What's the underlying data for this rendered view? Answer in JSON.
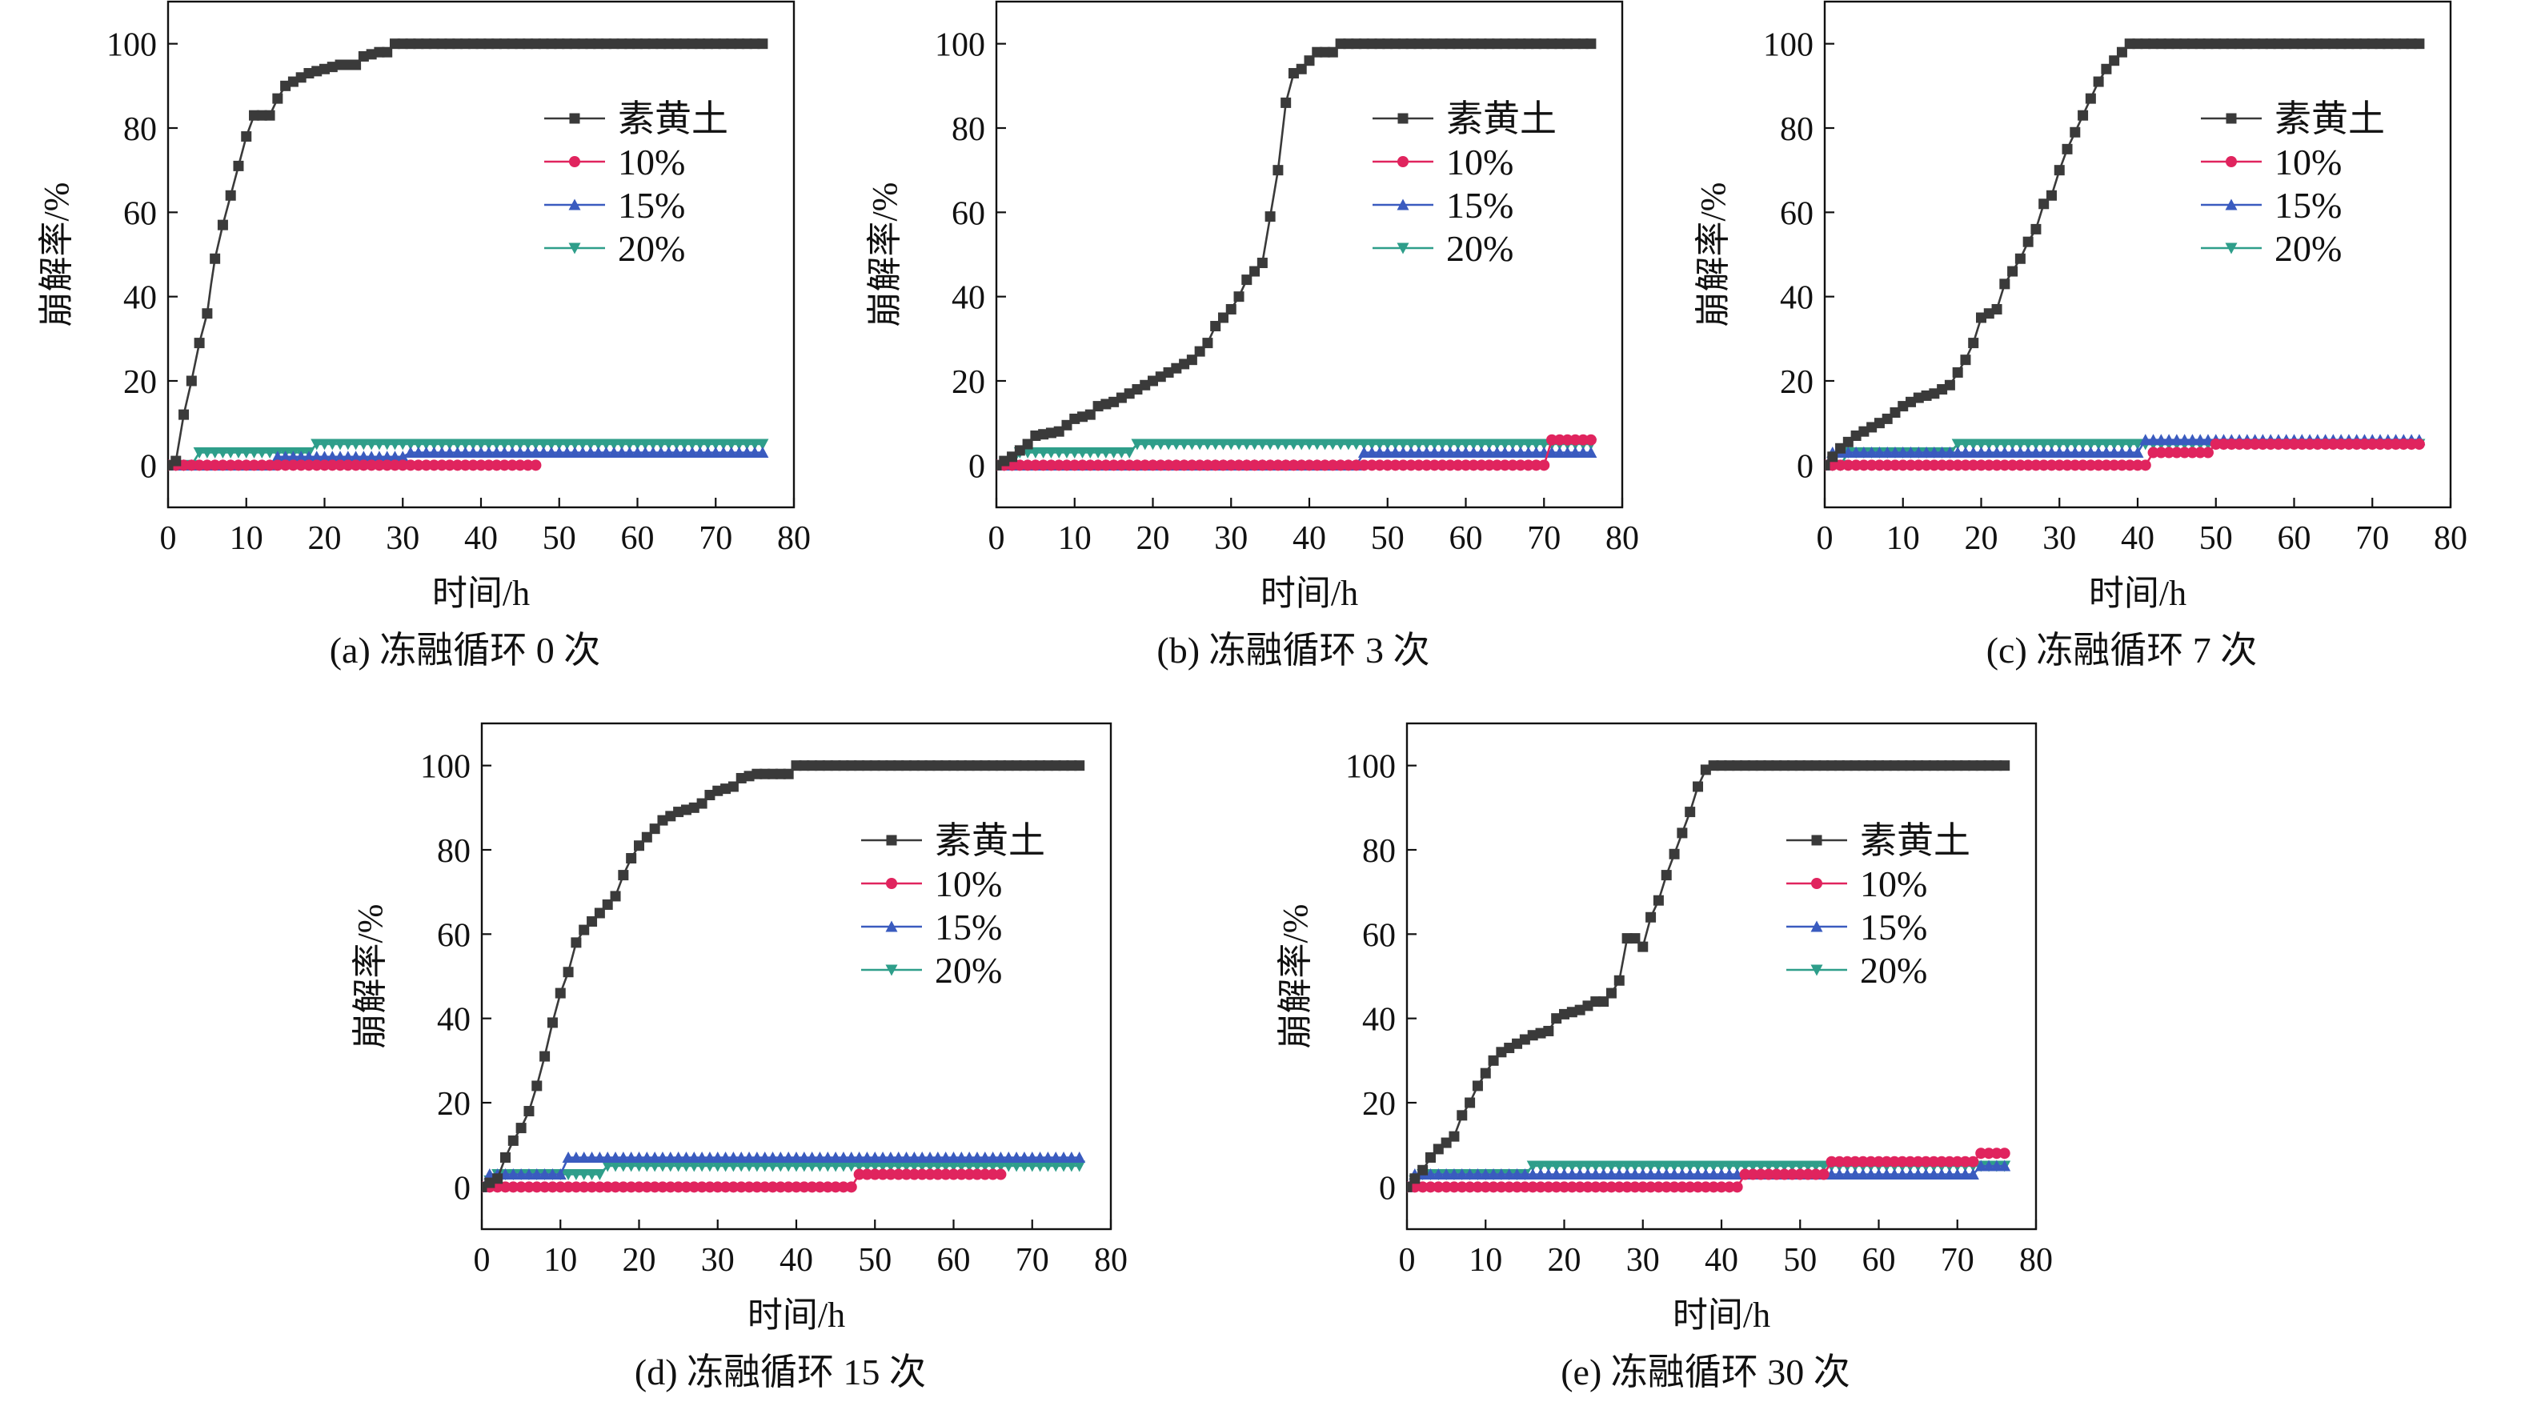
{
  "figure": {
    "legend_entries": [
      "素黄土",
      "10%",
      "15%",
      "20%"
    ],
    "series_colors": {
      "素黄土": "#3a3a3a",
      "10%": "#e0245e",
      "15%": "#3a5bbf",
      "20%": "#2e9e8a"
    },
    "series_markers": {
      "素黄土": "square",
      "10%": "circle",
      "15%": "triangle-up",
      "20%": "triangle-down"
    }
  },
  "chart_data": [
    {
      "type": "line",
      "caption": "(a) 冻融循环 0 次",
      "xlabel": "时间/h",
      "ylabel": "崩解率/%",
      "xlim": [
        0,
        80
      ],
      "ylim": [
        -10,
        110
      ],
      "xticks": [
        0,
        10,
        20,
        30,
        40,
        50,
        60,
        70,
        80
      ],
      "yticks": [
        0,
        20,
        40,
        60,
        80,
        100
      ],
      "legend_position": "top-right",
      "grid": false,
      "series": [
        {
          "name": "素黄土",
          "points": [
            [
              0,
              0
            ],
            [
              1,
              1
            ],
            [
              2,
              12
            ],
            [
              3,
              20
            ],
            [
              4,
              29
            ],
            [
              5,
              36
            ],
            [
              5.5,
              43
            ],
            [
              6,
              49
            ],
            [
              7,
              57
            ],
            [
              8,
              64
            ],
            [
              9,
              71
            ],
            [
              10,
              78
            ],
            [
              11,
              83
            ],
            [
              13,
              83
            ],
            [
              14,
              87
            ],
            [
              15,
              90
            ],
            [
              16,
              91
            ],
            [
              17,
              92
            ],
            [
              18,
              93
            ],
            [
              20,
              94
            ],
            [
              22,
              95
            ],
            [
              24,
              95
            ],
            [
              25,
              97
            ],
            [
              27,
              98
            ],
            [
              28,
              98
            ],
            [
              29,
              100
            ],
            [
              76,
              100
            ]
          ]
        },
        {
          "name": "10%",
          "points": [
            [
              0,
              0
            ],
            [
              47,
              0
            ]
          ]
        },
        {
          "name": "15%",
          "points": [
            [
              0,
              0
            ],
            [
              13,
              0
            ],
            [
              14,
              2
            ],
            [
              30,
              2
            ],
            [
              31,
              3
            ],
            [
              76,
              3
            ]
          ]
        },
        {
          "name": "20%",
          "points": [
            [
              0,
              0
            ],
            [
              3,
              0
            ],
            [
              4,
              3
            ],
            [
              18,
              3
            ],
            [
              19,
              5
            ],
            [
              76,
              5
            ]
          ]
        }
      ]
    },
    {
      "type": "line",
      "caption": "(b) 冻融循环 3 次",
      "xlabel": "时间/h",
      "ylabel": "崩解率/%",
      "xlim": [
        0,
        80
      ],
      "ylim": [
        -10,
        110
      ],
      "xticks": [
        0,
        10,
        20,
        30,
        40,
        50,
        60,
        70,
        80
      ],
      "yticks": [
        0,
        20,
        40,
        60,
        80,
        100
      ],
      "legend_position": "top-right",
      "grid": false,
      "series": [
        {
          "name": "素黄土",
          "points": [
            [
              0,
              0
            ],
            [
              2,
              2
            ],
            [
              4,
              5
            ],
            [
              5,
              7
            ],
            [
              8,
              8
            ],
            [
              10,
              11
            ],
            [
              12,
              12
            ],
            [
              13,
              14
            ],
            [
              15,
              15
            ],
            [
              17,
              17
            ],
            [
              19,
              19
            ],
            [
              21,
              21
            ],
            [
              23,
              23
            ],
            [
              25,
              25
            ],
            [
              27,
              29
            ],
            [
              28,
              33
            ],
            [
              30,
              37
            ],
            [
              31,
              40
            ],
            [
              32,
              44
            ],
            [
              34,
              48
            ],
            [
              35,
              59
            ],
            [
              36,
              70
            ],
            [
              37,
              86
            ],
            [
              38,
              93
            ],
            [
              39,
              94
            ],
            [
              40,
              96
            ],
            [
              41,
              98
            ],
            [
              43,
              98
            ],
            [
              44,
              100
            ],
            [
              76,
              100
            ]
          ]
        },
        {
          "name": "10%",
          "points": [
            [
              0,
              0
            ],
            [
              70,
              0
            ],
            [
              71,
              6
            ],
            [
              76,
              6
            ]
          ]
        },
        {
          "name": "15%",
          "points": [
            [
              0,
              0
            ],
            [
              46,
              0
            ],
            [
              47,
              3
            ],
            [
              76,
              3
            ]
          ]
        },
        {
          "name": "20%",
          "points": [
            [
              0,
              0
            ],
            [
              2,
              0
            ],
            [
              3,
              3
            ],
            [
              17,
              3
            ],
            [
              18,
              5
            ],
            [
              76,
              5
            ]
          ]
        }
      ]
    },
    {
      "type": "line",
      "caption": "(c) 冻融循环 7 次",
      "xlabel": "时间/h",
      "ylabel": "崩解率/%",
      "xlim": [
        0,
        80
      ],
      "ylim": [
        -10,
        110
      ],
      "xticks": [
        0,
        10,
        20,
        30,
        40,
        50,
        60,
        70,
        80
      ],
      "yticks": [
        0,
        20,
        40,
        60,
        80,
        100
      ],
      "legend_position": "top-right",
      "grid": false,
      "series": [
        {
          "name": "素黄土",
          "points": [
            [
              0,
              0
            ],
            [
              2,
              4
            ],
            [
              4,
              7
            ],
            [
              6,
              9
            ],
            [
              8,
              11
            ],
            [
              10,
              14
            ],
            [
              12,
              16
            ],
            [
              14,
              17
            ],
            [
              16,
              19
            ],
            [
              17,
              22
            ],
            [
              18,
              25
            ],
            [
              19,
              29
            ],
            [
              20,
              35
            ],
            [
              22,
              37
            ],
            [
              23,
              43
            ],
            [
              24,
              46
            ],
            [
              25,
              49
            ],
            [
              26,
              53
            ],
            [
              27,
              56
            ],
            [
              28,
              62
            ],
            [
              29,
              64
            ],
            [
              30,
              70
            ],
            [
              31,
              75
            ],
            [
              32,
              79
            ],
            [
              33,
              83
            ],
            [
              34,
              87
            ],
            [
              35,
              91
            ],
            [
              36,
              94
            ],
            [
              37,
              96
            ],
            [
              38,
              98
            ],
            [
              39,
              100
            ],
            [
              76,
              100
            ]
          ]
        },
        {
          "name": "10%",
          "points": [
            [
              0,
              0
            ],
            [
              41,
              0
            ],
            [
              42,
              3
            ],
            [
              49,
              3
            ],
            [
              50,
              5
            ],
            [
              76,
              5
            ]
          ]
        },
        {
          "name": "15%",
          "points": [
            [
              0,
              0
            ],
            [
              1,
              3
            ],
            [
              40,
              3
            ],
            [
              41,
              6
            ],
            [
              76,
              6
            ]
          ]
        },
        {
          "name": "20%",
          "points": [
            [
              0,
              0
            ],
            [
              2,
              0
            ],
            [
              3,
              3
            ],
            [
              16,
              3
            ],
            [
              17,
              5
            ],
            [
              76,
              5
            ]
          ]
        }
      ]
    },
    {
      "type": "line",
      "caption": "(d) 冻融循环 15 次",
      "xlabel": "时间/h",
      "ylabel": "崩解率/%",
      "xlim": [
        0,
        80
      ],
      "ylim": [
        -10,
        110
      ],
      "xticks": [
        0,
        10,
        20,
        30,
        40,
        50,
        60,
        70,
        80
      ],
      "yticks": [
        0,
        20,
        40,
        60,
        80,
        100
      ],
      "legend_position": "top-right",
      "grid": false,
      "series": [
        {
          "name": "素黄土",
          "points": [
            [
              0,
              0
            ],
            [
              2,
              2
            ],
            [
              3,
              7
            ],
            [
              4,
              11
            ],
            [
              5,
              14
            ],
            [
              6,
              18
            ],
            [
              7,
              24
            ],
            [
              8,
              31
            ],
            [
              9,
              39
            ],
            [
              10,
              46
            ],
            [
              11,
              51
            ],
            [
              12,
              58
            ],
            [
              13,
              61
            ],
            [
              14,
              63
            ],
            [
              15,
              65
            ],
            [
              16,
              67
            ],
            [
              17,
              69
            ],
            [
              18,
              74
            ],
            [
              19,
              78
            ],
            [
              20,
              81
            ],
            [
              21,
              83
            ],
            [
              22,
              85
            ],
            [
              23,
              87
            ],
            [
              24,
              88
            ],
            [
              25,
              89
            ],
            [
              27,
              90
            ],
            [
              28,
              91
            ],
            [
              29,
              93
            ],
            [
              30,
              94
            ],
            [
              32,
              95
            ],
            [
              33,
              97
            ],
            [
              35,
              98
            ],
            [
              39,
              98
            ],
            [
              40,
              100
            ],
            [
              76,
              100
            ]
          ]
        },
        {
          "name": "10%",
          "points": [
            [
              0,
              0
            ],
            [
              47,
              0
            ],
            [
              48,
              3
            ],
            [
              66,
              3
            ]
          ]
        },
        {
          "name": "15%",
          "points": [
            [
              0,
              0
            ],
            [
              1,
              3
            ],
            [
              10,
              3
            ],
            [
              11,
              7
            ],
            [
              76,
              7
            ]
          ]
        },
        {
          "name": "20%",
          "points": [
            [
              0,
              0
            ],
            [
              2,
              3
            ],
            [
              15,
              3
            ],
            [
              16,
              5
            ],
            [
              76,
              5
            ]
          ]
        }
      ]
    },
    {
      "type": "line",
      "caption": "(e) 冻融循环 30 次",
      "xlabel": "时间/h",
      "ylabel": "崩解率/%",
      "xlim": [
        0,
        80
      ],
      "ylim": [
        -10,
        110
      ],
      "xticks": [
        0,
        10,
        20,
        30,
        40,
        50,
        60,
        70,
        80
      ],
      "yticks": [
        0,
        20,
        40,
        60,
        80,
        100
      ],
      "legend_position": "top-right",
      "grid": false,
      "series": [
        {
          "name": "素黄土",
          "points": [
            [
              0,
              0
            ],
            [
              2,
              4
            ],
            [
              3,
              7
            ],
            [
              4,
              9
            ],
            [
              6,
              12
            ],
            [
              7,
              17
            ],
            [
              8,
              20
            ],
            [
              9,
              24
            ],
            [
              10,
              27
            ],
            [
              11,
              30
            ],
            [
              12,
              32
            ],
            [
              13,
              33
            ],
            [
              14,
              34
            ],
            [
              15,
              35
            ],
            [
              16,
              36
            ],
            [
              18,
              37
            ],
            [
              19,
              40
            ],
            [
              20,
              41
            ],
            [
              22,
              42
            ],
            [
              24,
              44
            ],
            [
              25,
              44
            ],
            [
              26,
              46
            ],
            [
              27,
              49
            ],
            [
              28,
              59
            ],
            [
              29,
              59
            ],
            [
              30,
              57
            ],
            [
              31,
              64
            ],
            [
              32,
              68
            ],
            [
              33,
              74
            ],
            [
              34,
              79
            ],
            [
              35,
              84
            ],
            [
              36,
              89
            ],
            [
              37,
              95
            ],
            [
              38,
              99
            ],
            [
              39,
              100
            ],
            [
              76,
              100
            ]
          ]
        },
        {
          "name": "10%",
          "points": [
            [
              0,
              0
            ],
            [
              42,
              0
            ],
            [
              43,
              3
            ],
            [
              53,
              3
            ],
            [
              54,
              6
            ],
            [
              72,
              6
            ],
            [
              73,
              8
            ],
            [
              76,
              8
            ]
          ]
        },
        {
          "name": "15%",
          "points": [
            [
              0,
              0
            ],
            [
              1,
              3
            ],
            [
              72,
              3
            ],
            [
              73,
              5
            ],
            [
              76,
              5
            ]
          ]
        },
        {
          "name": "20%",
          "points": [
            [
              0,
              0
            ],
            [
              2,
              3
            ],
            [
              15,
              3
            ],
            [
              16,
              5
            ],
            [
              76,
              5
            ]
          ]
        }
      ]
    }
  ]
}
